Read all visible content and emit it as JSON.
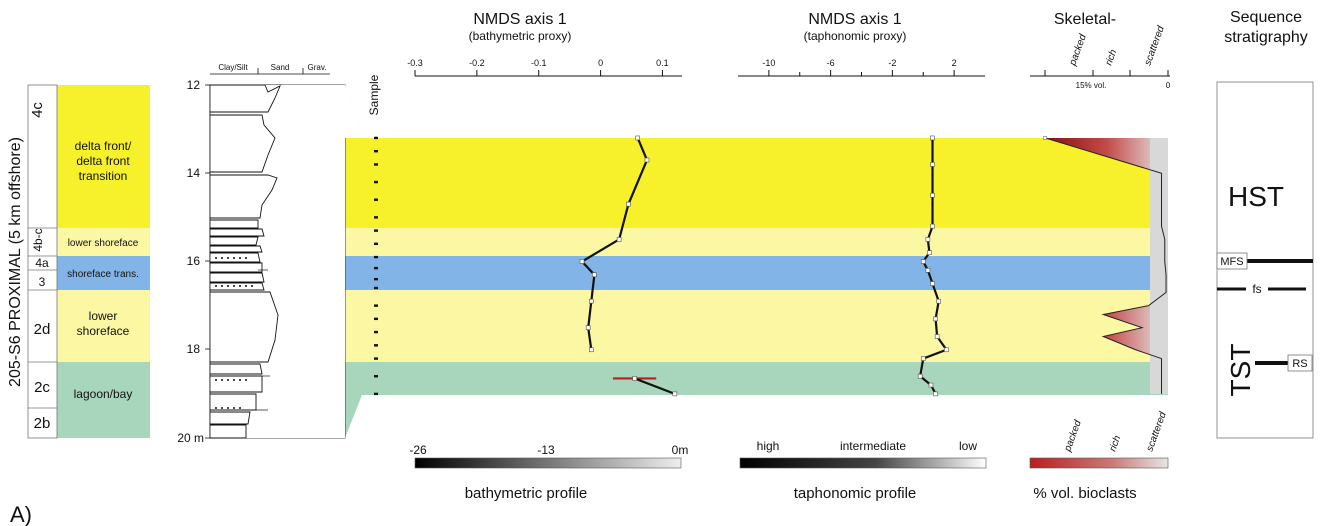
{
  "panel_label": "A)",
  "section_title": "205-S6 PROXIMAL (5 km offshore)",
  "subunits": [
    "4c",
    "4b-c",
    "4a",
    "3",
    "2d",
    "2c",
    "2b"
  ],
  "facies_labels": {
    "delta_front_1": "delta front/",
    "delta_front_2": "delta front",
    "delta_front_3": "transition",
    "lower_shoreface_a": "lower shoreface",
    "shoreface_trans": "shoreface trans.",
    "lower_shoreface_b1": "lower",
    "lower_shoreface_b2": "shoreface",
    "lagoon": "lagoon/bay"
  },
  "grain_size_header": [
    "Clay/Silt",
    "Sand",
    "Grav."
  ],
  "depth_ticks": [
    "12",
    "14",
    "16",
    "18",
    "20 m"
  ],
  "sample_label": "Sample",
  "nmds_bathy": {
    "title": "NMDS axis 1",
    "subtitle": "(bathymetric proxy)",
    "ticks": [
      "-0.3",
      "-0.2",
      "-0.1",
      "0",
      "0.1"
    ],
    "scale_label": "bathymetric profile",
    "scale_ticks": [
      "-26",
      "-13",
      "0m"
    ]
  },
  "nmds_tapho": {
    "title": "NMDS axis 1",
    "subtitle": "(taphonomic proxy)",
    "ticks": [
      "-10",
      "-6",
      "-2",
      "2"
    ],
    "scale_label": "taphonomic profile",
    "scale_ticks": [
      "high",
      "intermediate",
      "low"
    ]
  },
  "skeletal": {
    "title": "Skeletal-",
    "top_ticks": [
      "packed",
      "rich",
      "scattered"
    ],
    "axis_ticks": [
      "15% vol.",
      "0"
    ],
    "scale_label": "% vol. bioclasts",
    "scale_ticks": [
      "packed",
      "rich",
      "scattered"
    ]
  },
  "sequence": {
    "title1": "Sequence",
    "title2": "stratigraphy",
    "hst": "HST",
    "tst": "TST",
    "mfs": "MFS",
    "fs": "fs",
    "rs": "RS"
  },
  "colors": {
    "yellow": "#f6f12a",
    "pale_yellow": "#fbf7a3",
    "blue": "#83b4e8",
    "green": "#a8d6bd",
    "red": "#b8201f"
  },
  "chart_data": [
    {
      "type": "line",
      "title": "NMDS axis 1",
      "subtitle": "(bathymetric proxy)",
      "x_range": [
        -0.3,
        0.13
      ],
      "y_range_m": [
        12,
        20
      ],
      "points": [
        [
          0.06,
          13.2
        ],
        [
          0.075,
          13.7
        ],
        [
          0.045,
          14.7
        ],
        [
          0.03,
          15.5
        ],
        [
          -0.03,
          16.0
        ],
        [
          -0.01,
          16.3
        ],
        [
          -0.015,
          16.9
        ],
        [
          -0.02,
          17.5
        ],
        [
          -0.015,
          18.0
        ]
      ],
      "points_lower": [
        [
          0.055,
          18.65
        ],
        [
          0.12,
          19.0
        ]
      ]
    },
    {
      "type": "line",
      "title": "NMDS axis 1",
      "subtitle": "(taphonomic proxy)",
      "x_range": [
        -12,
        4
      ],
      "y_range_m": [
        12,
        20
      ],
      "points": [
        [
          0.6,
          13.2
        ],
        [
          0.6,
          13.8
        ],
        [
          0.6,
          14.5
        ],
        [
          0.6,
          15.2
        ],
        [
          0.3,
          15.5
        ],
        [
          0.4,
          15.8
        ],
        [
          0.0,
          16.0
        ],
        [
          0.3,
          16.2
        ],
        [
          0.6,
          16.5
        ],
        [
          1.0,
          16.9
        ],
        [
          0.8,
          17.3
        ],
        [
          0.9,
          17.7
        ],
        [
          1.5,
          18.0
        ],
        [
          0.0,
          18.2
        ],
        [
          -0.2,
          18.6
        ],
        [
          0.5,
          18.8
        ],
        [
          0.8,
          19.0
        ]
      ]
    },
    {
      "type": "area",
      "title": "Skeletal-",
      "x_range": [
        0,
        20
      ],
      "y_range_m": [
        12,
        20
      ],
      "points": [
        [
          19,
          13.2
        ],
        [
          1,
          14.0
        ],
        [
          1,
          15.2
        ],
        [
          0.5,
          15.5
        ],
        [
          0.5,
          16.0
        ],
        [
          0.3,
          16.3
        ],
        [
          0.3,
          16.7
        ],
        [
          3,
          17.0
        ],
        [
          10,
          17.2
        ],
        [
          4,
          17.5
        ],
        [
          10,
          17.7
        ],
        [
          5,
          18.0
        ],
        [
          1,
          18.2
        ],
        [
          1,
          19.0
        ]
      ]
    }
  ]
}
